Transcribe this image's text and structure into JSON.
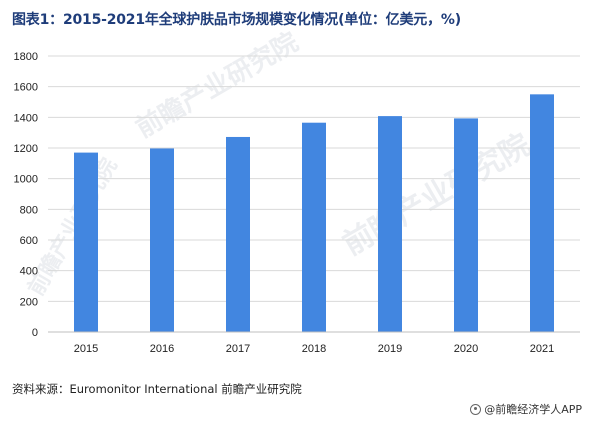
{
  "title": "图表1：2015-2021年全球护肤品市场规模变化情况(单位：亿美元，%)",
  "source": "资料来源：Euromonitor International 前瞻产业研究院",
  "brand": "@前瞻经济学人APP",
  "watermark": "前瞻产业研究院",
  "colors": {
    "bar": "#4286e0",
    "title": "#1f3d7a",
    "grid": "#d9d9d9"
  },
  "chart_data": {
    "type": "bar",
    "title": "图表1：2015-2021年全球护肤品市场规模变化情况(单位：亿美元，%)",
    "xlabel": "",
    "ylabel": "",
    "categories": [
      "2015",
      "2016",
      "2017",
      "2018",
      "2019",
      "2020",
      "2021"
    ],
    "values": [
      1170,
      1197,
      1272,
      1365,
      1408,
      1393,
      1550
    ],
    "ylim": [
      0,
      1800
    ],
    "yticks": [
      0,
      200,
      400,
      600,
      800,
      1000,
      1200,
      1400,
      1600,
      1800
    ],
    "grid": "horizontal",
    "legend": "none"
  }
}
